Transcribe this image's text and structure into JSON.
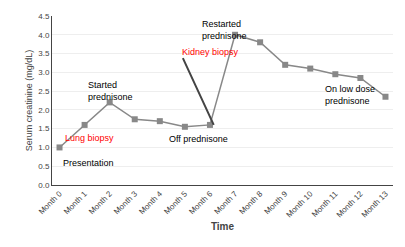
{
  "chart_data": {
    "type": "line",
    "categories": [
      "Month 0",
      "Month 1",
      "Month 2",
      "Month 3",
      "Month 4",
      "Month 5",
      "Month 6",
      "Month 7",
      "Month 8",
      "Month 9",
      "Month 10",
      "Month 11",
      "Month 12",
      "Month 13"
    ],
    "values": [
      1.0,
      1.6,
      2.2,
      1.75,
      1.7,
      1.55,
      1.6,
      4.0,
      3.8,
      3.2,
      3.1,
      2.95,
      2.85,
      2.35
    ],
    "color": "#888888",
    "marker": "square",
    "xlabel": "Time",
    "ylabel": "Serum creatinine (mg/dL)",
    "ylim": [
      0,
      4.5
    ],
    "yticks": [
      {
        "value": 0,
        "label": "0.0"
      },
      0.5,
      {
        "value": 1.0,
        "label": "1.0"
      },
      1.5,
      {
        "value": 2.0,
        "label": "2.0"
      },
      2.5,
      {
        "value": 3.0,
        "label": "3.0"
      },
      3.5,
      {
        "value": 4.0,
        "label": "4.0"
      },
      4.5
    ],
    "grid": true,
    "annotations": [
      {
        "text": "Presentation",
        "color": "black"
      },
      {
        "text": "Lung biopsy",
        "color": "red"
      },
      {
        "text": "Started\nprednisone",
        "color": "black"
      },
      {
        "text": "Off prednisone",
        "color": "black"
      },
      {
        "text": "Kidney biopsy",
        "color": "red"
      },
      {
        "text": "Restarted\nprednisone",
        "color": "black"
      },
      {
        "text": "On low dose\nprednisone",
        "color": "black"
      }
    ]
  }
}
